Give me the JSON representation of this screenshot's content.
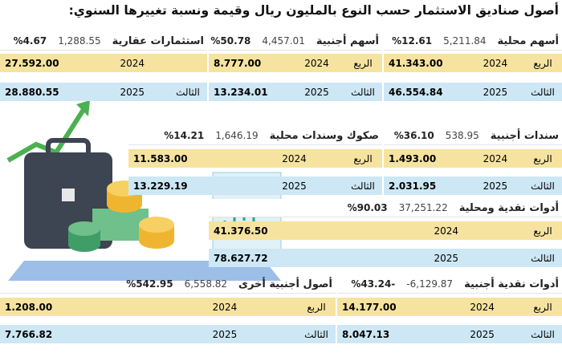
{
  "header": {
    "title": "أصول صناديق الاستثمار حسب النوع بالمليون ريال وقيمة ونسبة تغييرها السنوي:"
  },
  "blocks": [
    {
      "name": "أسهم محلية",
      "change": "5,211.84",
      "percent": "%12.61",
      "rows": [
        {
          "label": "الربع",
          "year": "2024",
          "value": "41.343.00"
        },
        {
          "label": "الثالث",
          "year": "2025",
          "value": "46.554.84"
        }
      ]
    },
    {
      "name": "أسهم أجنبية",
      "change": "4,457.01",
      "percent": "%50.78",
      "rows": [
        {
          "label": "الربع",
          "year": "2024",
          "value": "8.777.00"
        },
        {
          "label": "الثالث",
          "year": "2025",
          "value": "13.234.01"
        }
      ]
    },
    {
      "name": "استثمارات عقارية",
      "change": "1,288.55",
      "percent": "%4.67",
      "rows": [
        {
          "year": "2024",
          "value": "27.592.00"
        },
        {
          "label": "الثالث",
          "year": "2025",
          "value": "28.880.55"
        }
      ]
    },
    {
      "name": "صكوك وسندات محلية",
      "change": "1,646.19",
      "percent": "%14.21",
      "rows": [
        {
          "label": "الربع",
          "year": "2024",
          "value": "11.583.00"
        },
        {
          "label": "الثالث",
          "year": "2025",
          "value": "13.229.19"
        }
      ]
    },
    {
      "name": "سندات أجنبية",
      "change": "538.95",
      "percent": "%36.10",
      "rows": [
        {
          "label": "الربع",
          "year": "2024",
          "value": "1.493.00"
        },
        {
          "label": "الثالث",
          "year": "2025",
          "value": "2.031.95"
        }
      ]
    },
    {
      "name": "أدوات نقدية ومحلية",
      "change": "37,251.22",
      "percent": "%90.03",
      "rows": [
        {
          "label": "الربع",
          "year": "2024",
          "value": "41.376.50"
        },
        {
          "label": "الثالث",
          "year": "2025",
          "value": "78.627.72"
        }
      ]
    },
    {
      "name": "أدوات نقدية أجنبية",
      "change": "-6,129.87",
      "percent": "%43.24-",
      "rows": [
        {
          "label": "الربع",
          "year": "2024",
          "value": "14.177.00"
        },
        {
          "label": "الثالث",
          "year": "2025",
          "value": "8.047.13"
        }
      ]
    },
    {
      "name": "أصول أجنبية أخرى",
      "change": "6,558.82",
      "percent": "%542.95",
      "rows": [
        {
          "label": "الربع",
          "year": "2024",
          "value": "1.208.00"
        },
        {
          "label": "الثالث",
          "year": "2025",
          "value": "7.766.82"
        }
      ]
    }
  ]
}
